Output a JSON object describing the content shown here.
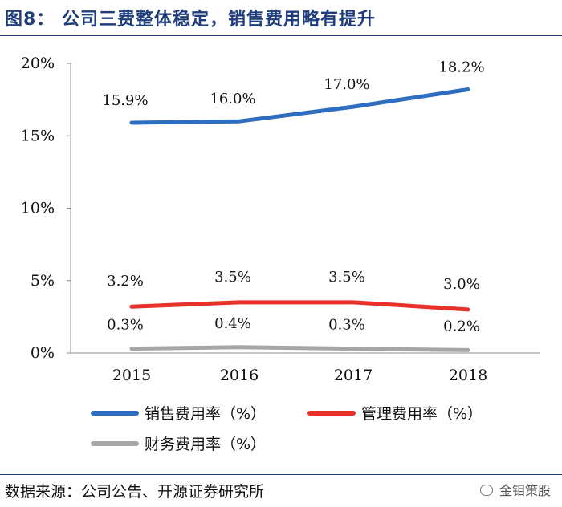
{
  "title": "图8：  公司三费整体稳定，销售费用略有提升",
  "source": "数据来源：公司公告、开源证券研究所",
  "watermark": "金钼策股",
  "chart_data": {
    "type": "line",
    "categories": [
      "2015",
      "2016",
      "2017",
      "2018"
    ],
    "ylim": [
      0,
      20
    ],
    "yticks": [
      0,
      5,
      10,
      15,
      20
    ],
    "ytick_labels": [
      "0%",
      "5%",
      "10%",
      "15%",
      "20%"
    ],
    "series": [
      {
        "name": "销售费用率（%）",
        "color": "#2e6dbf",
        "values": [
          15.9,
          16.0,
          17.0,
          18.2
        ],
        "labels": [
          "15.9%",
          "16.0%",
          "17.0%",
          "18.2%"
        ]
      },
      {
        "name": "管理费用率（%）",
        "color": "#e8312a",
        "values": [
          3.2,
          3.5,
          3.5,
          3.0
        ],
        "labels": [
          "3.2%",
          "3.5%",
          "3.5%",
          "3.0%"
        ]
      },
      {
        "name": "财务费用率（%）",
        "color": "#a6a6a6",
        "values": [
          0.3,
          0.4,
          0.3,
          0.2
        ],
        "labels": [
          "0.3%",
          "0.4%",
          "0.3%",
          "0.2%"
        ]
      }
    ]
  }
}
